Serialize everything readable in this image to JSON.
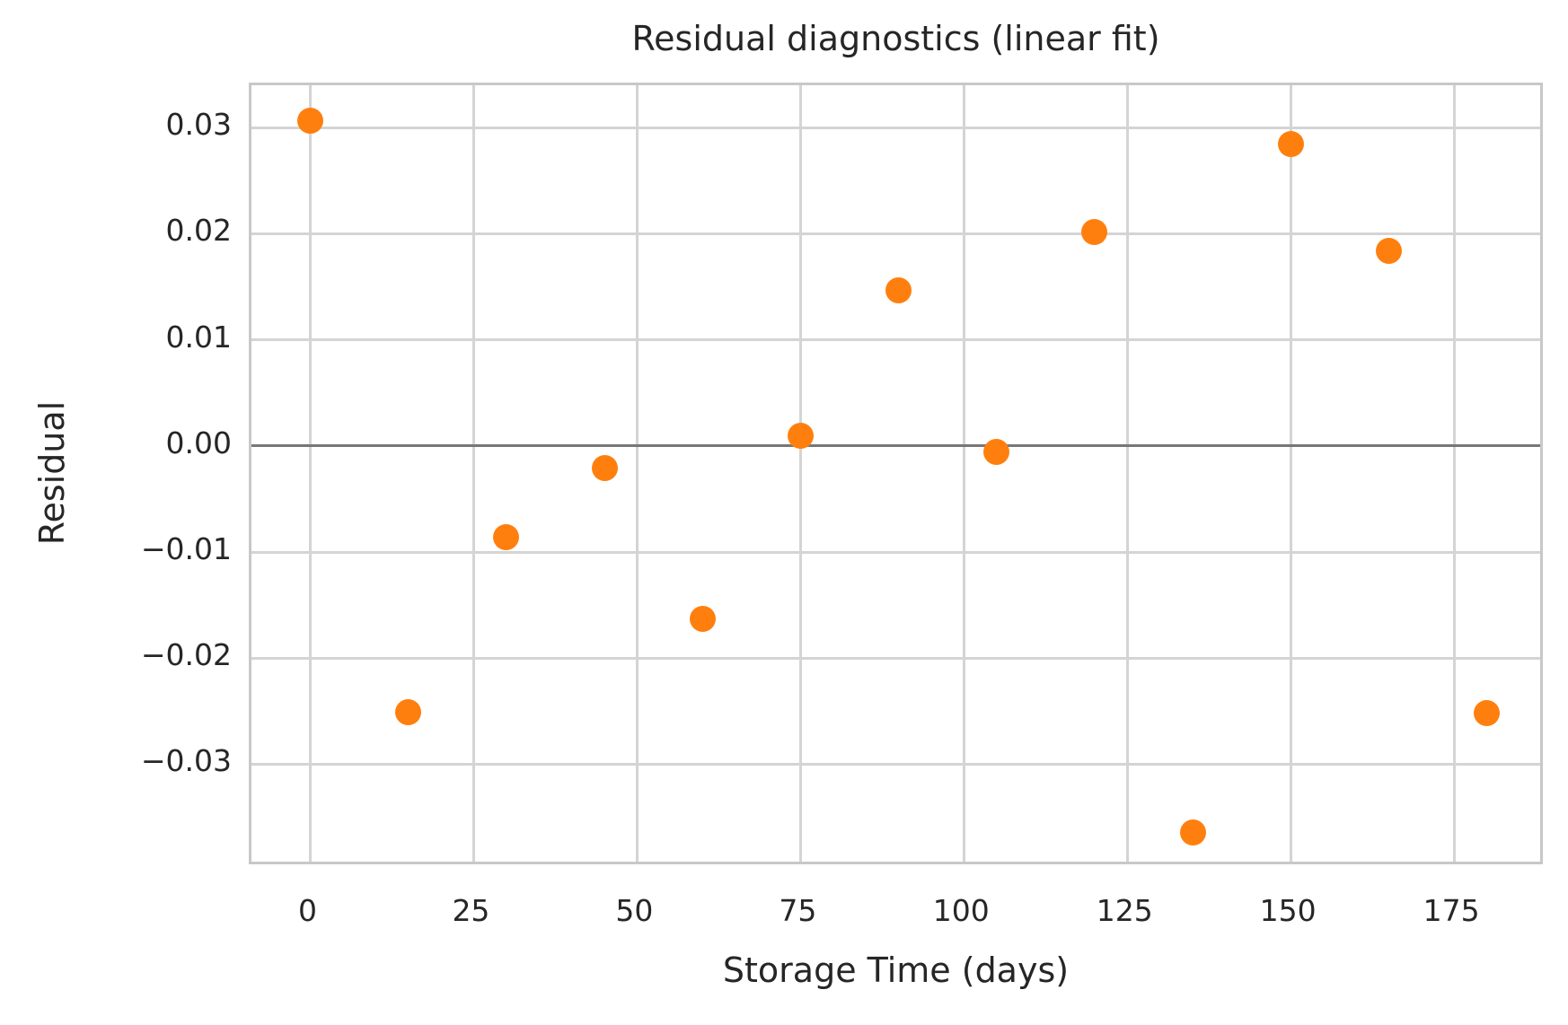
{
  "chart_data": {
    "type": "scatter",
    "title": "Residual diagnostics (linear fit)",
    "xlabel": "Storage Time (days)",
    "ylabel": "Residual",
    "x": [
      0,
      15,
      30,
      45,
      60,
      75,
      90,
      105,
      120,
      135,
      150,
      165,
      180
    ],
    "y": [
      0.0307,
      -0.0251,
      -0.0086,
      -0.0021,
      -0.0163,
      0.001,
      0.0147,
      -0.0006,
      0.0202,
      -0.0364,
      0.0285,
      0.0184,
      -0.0252
    ],
    "xlim": [
      -9,
      189
    ],
    "ylim": [
      -0.0397,
      0.034
    ],
    "xticks": {
      "values": [
        0,
        25,
        50,
        75,
        100,
        125,
        150,
        175
      ],
      "labels": [
        "0",
        "25",
        "50",
        "75",
        "100",
        "125",
        "150",
        "175"
      ]
    },
    "yticks": {
      "values": [
        0.03,
        0.02,
        0.01,
        0.0,
        -0.01,
        -0.02,
        -0.03
      ],
      "labels": [
        "0.03",
        "0.02",
        "0.01",
        "0.00",
        "−0.01",
        "−0.02",
        "−0.03"
      ]
    },
    "grid": true,
    "zero_line": true,
    "legend_position": "none",
    "colors": {
      "marker": "#ff7f0e",
      "grid": "#d4d4d4",
      "spine": "#c8c8c8",
      "zero_line": "#777777",
      "text": "#262626",
      "background": "#ffffff"
    },
    "marker_diameter_px": 29
  }
}
